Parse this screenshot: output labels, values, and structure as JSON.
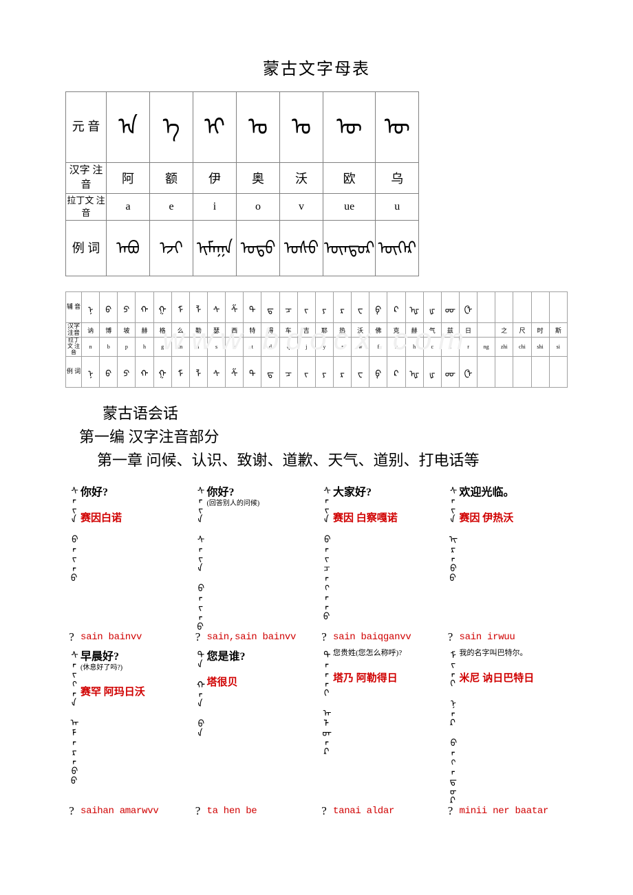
{
  "title": "蒙古文字母表",
  "vowel_table": {
    "row_headers": [
      "元\n音",
      "汉字\n注音",
      "拉丁文\n注音",
      "例\n词"
    ],
    "columns": [
      {
        "mong": "ᠠ",
        "hanzi": "阿",
        "latin": "a",
        "example": "ᠠᠪᠤ"
      },
      {
        "mong": "ᠡ",
        "hanzi": "额",
        "latin": "e",
        "example": "ᠡᠵᠢ"
      },
      {
        "mong": "ᠢ",
        "hanzi": "伊",
        "latin": "i",
        "example": "ᠢᠮᠠᠭᠠ"
      },
      {
        "mong": "ᠣ",
        "hanzi": "奥",
        "latin": "o",
        "example": "ᠣᠳᠣ"
      },
      {
        "mong": "ᠤ",
        "hanzi": "沃",
        "latin": "v",
        "example": "ᠤᠰᠤ"
      },
      {
        "mong": "ᠥ",
        "hanzi": "欧",
        "latin": "ue",
        "example": "ᠥᠨᠳᠥᠷ"
      },
      {
        "mong": "ᠦ",
        "hanzi": "乌",
        "latin": "u",
        "example": "ᠦᠬᠡᠷ"
      }
    ]
  },
  "consonant_table": {
    "row_headers": [
      "辅\n音",
      "汉字\n注音",
      "拉丁文\n注音",
      "例\n词"
    ],
    "columns": [
      {
        "m": "ᠨ",
        "h": "讷",
        "l": "n",
        "e": "ᠨ"
      },
      {
        "m": "ᠪ",
        "h": "博",
        "l": "b",
        "e": "ᠪ"
      },
      {
        "m": "ᠫ",
        "h": "坡",
        "l": "p",
        "e": "ᠫ"
      },
      {
        "m": "ᠬ",
        "h": "赫",
        "l": "h",
        "e": "ᠬ"
      },
      {
        "m": "ᠭ",
        "h": "格",
        "l": "g",
        "e": "ᠭ"
      },
      {
        "m": "ᠮ",
        "h": "么",
        "l": "m",
        "e": "ᠮ"
      },
      {
        "m": "ᠯ",
        "h": "勒",
        "l": "l",
        "e": "ᠯ"
      },
      {
        "m": "ᠰ",
        "h": "瑟",
        "l": "s",
        "e": "ᠰ"
      },
      {
        "m": "ᠱ",
        "h": "西",
        "l": "x",
        "e": "ᠱ"
      },
      {
        "m": "ᠲ",
        "h": "特",
        "l": "t",
        "e": "ᠲ"
      },
      {
        "m": "ᠳ",
        "h": "得",
        "l": "d",
        "e": "ᠳ"
      },
      {
        "m": "ᠴ",
        "h": "车",
        "l": "q",
        "e": "ᠴ"
      },
      {
        "m": "ᠵ",
        "h": "吉",
        "l": "j",
        "e": "ᠵ"
      },
      {
        "m": "ᠶ",
        "h": "耶",
        "l": "y",
        "e": "ᠶ"
      },
      {
        "m": "ᠷ",
        "h": "热",
        "l": "r",
        "e": "ᠷ"
      },
      {
        "m": "ᠸ",
        "h": "沃",
        "l": "w",
        "e": "ᠸ"
      },
      {
        "m": "ᠹ",
        "h": "佛",
        "l": "f",
        "e": "ᠹ"
      },
      {
        "m": "ᠺ",
        "h": "克",
        "l": "k",
        "e": "ᠺ"
      },
      {
        "m": "ᠾ",
        "h": "赫",
        "l": "h",
        "e": "ᠾ"
      },
      {
        "m": "ᡁ",
        "h": "气",
        "l": "c",
        "e": "ᡁ"
      },
      {
        "m": "ᡂ",
        "h": "兹",
        "l": "z",
        "e": "ᡂ"
      },
      {
        "m": "ᠿ",
        "h": "日",
        "l": "r",
        "e": "ᠿ"
      },
      {
        "m": "",
        "h": "",
        "l": "ng",
        "e": ""
      },
      {
        "m": "",
        "h": "之",
        "l": "zhi",
        "e": ""
      },
      {
        "m": "",
        "h": "尺",
        "l": "chi",
        "e": ""
      },
      {
        "m": "",
        "h": "时",
        "l": "shi",
        "e": ""
      },
      {
        "m": "",
        "h": "斯",
        "l": "si",
        "e": ""
      }
    ]
  },
  "watermark": "www.bdocx.com",
  "section1": "蒙古语会话",
  "section2": "第一编 汉字注音部分",
  "section3": "第一章  问候、认识、致谢、道歉、天气、道别、打电话等",
  "phrases_row1": [
    {
      "cn": "你好?",
      "sub": "",
      "pin_cn": "赛因白诺",
      "pin_lt": "sain bainvv",
      "mong": "ᠰᠠᠢᠨ ᠪᠠᠢᠨᠤ"
    },
    {
      "cn": "你好?",
      "sub": "(回答别人的问候)",
      "pin_cn": "",
      "pin_lt": "sain,sain bainvv",
      "mong": "ᠰᠠᠢᠨ ᠰᠠᠢᠨ ᠪᠠᠢᠨᠤ"
    },
    {
      "cn": "大家好?",
      "sub": "",
      "pin_cn": "赛因 白察嘎诺",
      "pin_lt": "sain baiqganvv",
      "mong": "ᠰᠠᠢᠨ ᠪᠠᠢᠴᠠᠭᠠᠨᠤ"
    },
    {
      "cn": "欢迎光临。",
      "sub": "",
      "pin_cn": "赛因 伊热沃",
      "pin_lt": "sain irwuu",
      "mong": "ᠰᠠᠢᠨ ᠢᠷᠡᠪᠦ"
    }
  ],
  "phrases_row2": [
    {
      "cn": "早晨好?",
      "sub": "(休息好了吗?)",
      "pin_cn": "赛罕 阿玛日沃",
      "pin_lt": "saihan amarwvv",
      "mong": "ᠰᠠᠢᠬᠠᠨ ᠠᠮᠠᠷᠠᠪᠤ"
    },
    {
      "cn": "您是谁?",
      "sub": "",
      "pin_cn": "塔很贝",
      "pin_lt": "ta hen be",
      "mong": "ᠲᠠ ᠬᠡᠨ ᠪᠡ"
    },
    {
      "cn": "您贵姓(您怎么称呼)?",
      "sub": "",
      "pin_cn": "塔乃 阿勒得日",
      "pin_lt": "tanai aldar",
      "mong": "ᠲᠠᠨᠠᠢ ᠠᠯᠳᠠᠷ"
    },
    {
      "cn": "我的名字叫巴特尔。",
      "sub": "",
      "pin_cn": "米尼 讷日巴特日",
      "pin_lt": "minii ner baatar",
      "mong": "ᠮᠢᠨᠢ ᠨᠡᠷ ᠪᠠᠭᠠᠲᠤᠷ"
    }
  ]
}
